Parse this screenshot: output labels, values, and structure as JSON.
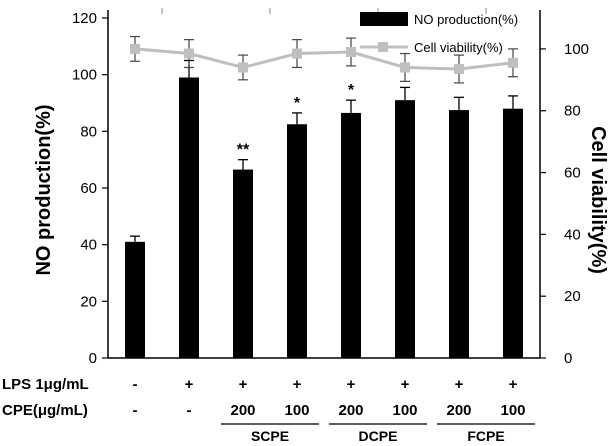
{
  "chart_data": {
    "type": "bar",
    "left_axis": {
      "label": "NO production(%)",
      "ylim": [
        0,
        120
      ],
      "ticks": [
        0,
        20,
        40,
        60,
        80,
        100,
        120
      ]
    },
    "right_axis": {
      "label": "Cell viability(%)",
      "ylim": [
        0,
        110
      ],
      "ticks": [
        0,
        20,
        40,
        60,
        80,
        100
      ]
    },
    "grid": false,
    "legend_position": "top-right",
    "series": [
      {
        "name": "NO production(%)",
        "kind": "bar",
        "axis": "left",
        "color": "#000000",
        "values": [
          41,
          99,
          66.5,
          82.5,
          86.5,
          91,
          87.5,
          88
        ],
        "errors": [
          2,
          6,
          3.5,
          4,
          4.5,
          4.5,
          4.5,
          4.5
        ]
      },
      {
        "name": "Cell viability(%)",
        "kind": "line",
        "axis": "right",
        "color": "#bfbfbf",
        "values": [
          100,
          98.5,
          94,
          98.5,
          99,
          94,
          93.5,
          95.5
        ],
        "errors": [
          4,
          4.5,
          4,
          4.5,
          4.5,
          4.5,
          4.5,
          4.5
        ]
      }
    ],
    "significance": [
      "",
      "",
      "**",
      "*",
      "*",
      "",
      "",
      ""
    ],
    "conditions": {
      "rows": [
        {
          "label": "LPS 1μg/mL",
          "values": [
            "-",
            "+",
            "+",
            "+",
            "+",
            "+",
            "+",
            "+"
          ]
        },
        {
          "label": "CPE(μg/mL)",
          "values": [
            "-",
            "-",
            "200",
            "100",
            "200",
            "100",
            "200",
            "100"
          ]
        }
      ],
      "groups": [
        {
          "label": "SCPE",
          "span": [
            2,
            3
          ]
        },
        {
          "label": "DCPE",
          "span": [
            4,
            5
          ]
        },
        {
          "label": "FCPE",
          "span": [
            6,
            7
          ]
        }
      ]
    }
  }
}
